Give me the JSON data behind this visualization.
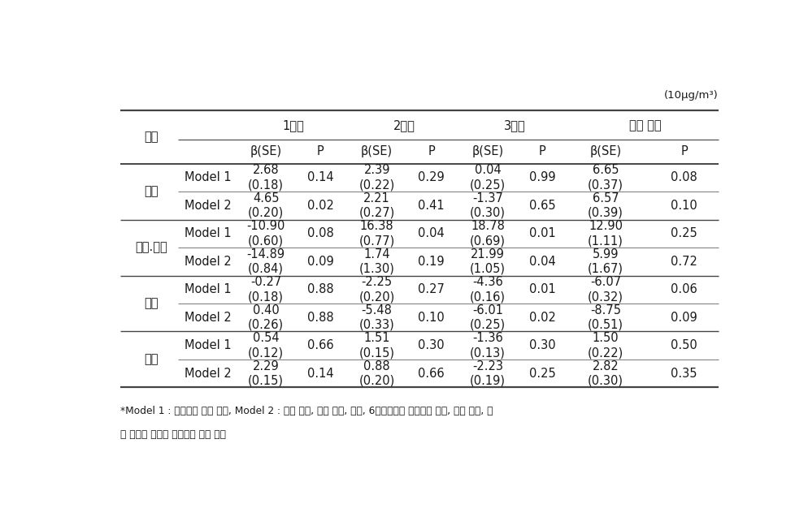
{
  "unit_label": "(10μg/m³)",
  "col_headers": [
    "1분기",
    "2분기",
    "3분기",
    "전체 기간"
  ],
  "sub_headers": [
    "β(SE)",
    "P",
    "β(SE)",
    "P",
    "β(SE)",
    "P",
    "β(SE)",
    "P"
  ],
  "row_label_col": "도시",
  "cities": [
    "서울",
    "천안.아산",
    "울산",
    "전체"
  ],
  "models": [
    "Model 1",
    "Model 2"
  ],
  "data": {
    "서울": {
      "Model 1": [
        [
          "2.68",
          "(0.18)"
        ],
        "0.14",
        [
          "2.39",
          "(0.22)"
        ],
        "0.29",
        [
          "0.04",
          "(0.25)"
        ],
        "0.99",
        [
          "6.65",
          "(0.37)"
        ],
        "0.08"
      ],
      "Model 2": [
        [
          "4.65",
          "(0.20)"
        ],
        "0.02",
        [
          "2.21",
          "(0.27)"
        ],
        "0.41",
        [
          "-1.37",
          "(0.30)"
        ],
        "0.65",
        [
          "6.57",
          "(0.39)"
        ],
        "0.10"
      ]
    },
    "천안.아산": {
      "Model 1": [
        [
          "-10.90",
          "(0.60)"
        ],
        "0.08",
        [
          "16.38",
          "(0.77)"
        ],
        "0.04",
        [
          "18.78",
          "(0.69)"
        ],
        "0.01",
        [
          "12.90",
          "(1.11)"
        ],
        "0.25"
      ],
      "Model 2": [
        [
          "-14.89",
          "(0.84)"
        ],
        "0.09",
        [
          "1.74",
          "(1.30)"
        ],
        "0.19",
        [
          "21.99",
          "(1.05)"
        ],
        "0.04",
        [
          "5.99",
          "(1.67)"
        ],
        "0.72"
      ]
    },
    "울산": {
      "Model 1": [
        [
          "-0.27",
          "(0.18)"
        ],
        "0.88",
        [
          "-2.25",
          "(0.20)"
        ],
        "0.27",
        [
          "-4.36",
          "(0.16)"
        ],
        "0.01",
        [
          "-6.07",
          "(0.32)"
        ],
        "0.06"
      ],
      "Model 2": [
        [
          "0.40",
          "(0.26)"
        ],
        "0.88",
        [
          "-5.48",
          "(0.33)"
        ],
        "0.10",
        [
          "-6.01",
          "(0.25)"
        ],
        "0.02",
        [
          "-8.75",
          "(0.51)"
        ],
        "0.09"
      ]
    },
    "전체": {
      "Model 1": [
        [
          "0.54",
          "(0.12)"
        ],
        "0.66",
        [
          "1.51",
          "(0.15)"
        ],
        "0.30",
        [
          "-1.36",
          "(0.13)"
        ],
        "0.30",
        [
          "1.50",
          "(0.22)"
        ],
        "0.50"
      ],
      "Model 2": [
        [
          "2.29",
          "(0.15)"
        ],
        "0.14",
        [
          "0.88",
          "(0.20)"
        ],
        "0.66",
        [
          "-2.23",
          "(0.19)"
        ],
        "0.25",
        [
          "2.82",
          "(0.30)"
        ],
        "0.35"
      ]
    }
  },
  "footnote_line1": "*Model 1 : 단순선형 회귀 분석, Model 2 : 산모 나이, 교육 수준, 수입, 6개월에서의 모유수유 여부, 간접 휘연, 임",
  "footnote_line2": "신 주수를 보정한 다중선형 회귀 분석",
  "background_color": "#ffffff",
  "text_color": "#1a1a1a",
  "line_color": "#444444"
}
